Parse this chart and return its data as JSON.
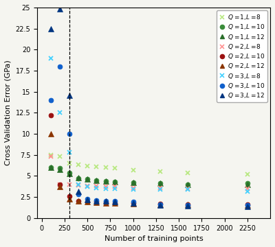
{
  "xlabel": "Number of training points",
  "ylabel": "Cross Validation Error (GPa)",
  "xlim": [
    -50,
    2500
  ],
  "ylim": [
    0,
    25
  ],
  "xticks": [
    0,
    250,
    500,
    750,
    1000,
    1250,
    1500,
    1750,
    2000,
    2250
  ],
  "yticks": [
    0,
    2.5,
    5,
    7.5,
    10,
    12.5,
    15,
    17.5,
    20,
    22.5,
    25
  ],
  "vline_x": 300,
  "series": [
    {
      "label": "$Q$ =1,$L$ =8",
      "color": "#b8e880",
      "marker": "x",
      "x": [
        100,
        200,
        300,
        400,
        500,
        600,
        700,
        800,
        1000,
        1300,
        1600,
        2250
      ],
      "y": [
        7.5,
        7.3,
        6.5,
        6.3,
        6.2,
        6.1,
        6.0,
        5.9,
        5.7,
        5.5,
        5.4,
        5.2
      ]
    },
    {
      "label": "$Q$ =1,$L$ =10",
      "color": "#3a8c3a",
      "marker": "o",
      "x": [
        100,
        200,
        300,
        400,
        500,
        600,
        700,
        800,
        1000,
        1300,
        1600,
        2250
      ],
      "y": [
        6.0,
        5.9,
        5.4,
        4.7,
        4.6,
        4.5,
        4.4,
        4.3,
        4.2,
        4.1,
        4.0,
        4.1
      ]
    },
    {
      "label": "$Q$ =1,$L$ =12",
      "color": "#2a6e2a",
      "marker": "^",
      "x": [
        100,
        200,
        300,
        400,
        500,
        600,
        700,
        800,
        1000,
        1300,
        1600,
        2250
      ],
      "y": [
        6.0,
        5.8,
        5.3,
        4.8,
        4.6,
        4.5,
        4.4,
        4.3,
        4.2,
        4.1,
        4.0,
        4.0
      ]
    },
    {
      "label": "$Q$ =2,$L$ =8",
      "color": "#FF9090",
      "marker": "x",
      "x": [
        100,
        200,
        300,
        400,
        500,
        600,
        700,
        800,
        1000,
        1300,
        1600,
        2250
      ],
      "y": [
        7.3,
        4.0,
        4.0,
        3.9,
        3.8,
        3.8,
        3.7,
        3.7,
        3.6,
        3.55,
        3.5,
        3.45
      ]
    },
    {
      "label": "$Q$ =2,$L$ =10",
      "color": "#9B1111",
      "marker": "o",
      "x": [
        100,
        200,
        300,
        400,
        500,
        600,
        700,
        800,
        1000,
        1300,
        1600,
        2250
      ],
      "y": [
        12.2,
        4.0,
        2.6,
        2.0,
        1.9,
        1.9,
        1.85,
        1.8,
        1.75,
        1.7,
        1.65,
        1.6
      ]
    },
    {
      "label": "$Q$ =2,$L$ =12",
      "color": "#8B3500",
      "marker": "^",
      "x": [
        100,
        200,
        300,
        400,
        500,
        600,
        700,
        800,
        1000,
        1300,
        1600,
        2250
      ],
      "y": [
        10.0,
        3.7,
        2.3,
        2.0,
        1.9,
        1.85,
        1.8,
        1.75,
        1.7,
        1.65,
        1.6,
        1.55
      ]
    },
    {
      "label": "$Q$ =3,$L$ =8",
      "color": "#40D0FF",
      "marker": "x",
      "x": [
        100,
        200,
        300,
        400,
        500,
        600,
        700,
        800,
        1000,
        1300,
        1600,
        2250
      ],
      "y": [
        19.0,
        12.5,
        7.8,
        4.0,
        3.7,
        3.6,
        3.5,
        3.5,
        3.4,
        3.4,
        3.4,
        3.2
      ]
    },
    {
      "label": "$Q$ =3,$L$ =10",
      "color": "#1060CC",
      "marker": "o",
      "x": [
        100,
        200,
        300,
        400,
        500,
        600,
        700,
        800,
        1000,
        1300,
        1600,
        2250
      ],
      "y": [
        14.0,
        18.0,
        10.0,
        2.8,
        2.3,
        2.1,
        2.0,
        2.0,
        1.9,
        1.6,
        1.55,
        1.5
      ]
    },
    {
      "label": "$Q$ =3,$L$ =12",
      "color": "#003580",
      "marker": "^",
      "x": [
        100,
        200,
        300,
        400,
        500,
        600,
        700,
        800,
        1000,
        1300,
        1600,
        2250
      ],
      "y": [
        22.5,
        24.8,
        14.6,
        3.2,
        2.2,
        2.0,
        2.0,
        1.9,
        1.8,
        1.5,
        1.45,
        1.4
      ]
    }
  ],
  "legend_fontsize": 6.5,
  "tick_fontsize": 7,
  "label_fontsize": 8,
  "bg_color": "#f5f5f0"
}
